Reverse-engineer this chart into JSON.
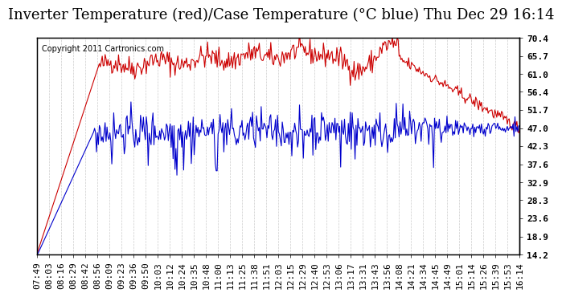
{
  "title": "Inverter Temperature (red)/Case Temperature (°C blue) Thu Dec 29 16:14",
  "copyright": "Copyright 2011 Cartronics.com",
  "y_ticks": [
    14.2,
    18.9,
    23.6,
    28.3,
    32.9,
    37.6,
    42.3,
    47.0,
    51.7,
    56.4,
    61.0,
    65.7,
    70.4
  ],
  "x_labels": [
    "07:49",
    "08:03",
    "08:16",
    "08:29",
    "08:42",
    "08:56",
    "09:09",
    "09:23",
    "09:36",
    "09:50",
    "10:03",
    "10:12",
    "10:24",
    "10:35",
    "10:48",
    "11:00",
    "11:13",
    "11:25",
    "11:38",
    "11:51",
    "12:03",
    "12:15",
    "12:29",
    "12:40",
    "12:53",
    "13:06",
    "13:17",
    "13:31",
    "13:43",
    "13:56",
    "14:08",
    "14:21",
    "14:34",
    "14:45",
    "14:49",
    "15:01",
    "15:14",
    "15:26",
    "15:39",
    "15:53",
    "16:14"
  ],
  "bg_color": "#ffffff",
  "plot_bg_color": "#ffffff",
  "grid_color": "#cccccc",
  "red_color": "#cc0000",
  "blue_color": "#0000cc",
  "title_fontsize": 13,
  "tick_fontsize": 8,
  "copyright_fontsize": 7
}
